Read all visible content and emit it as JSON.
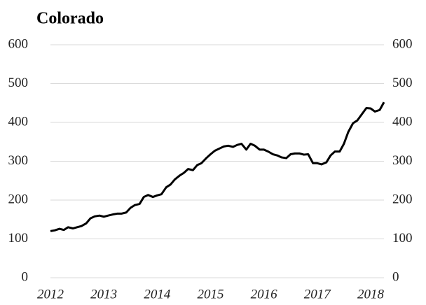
{
  "chart_data": {
    "type": "line",
    "title": "Colorado",
    "x": [
      2012.0,
      2012.08,
      2012.17,
      2012.25,
      2012.33,
      2012.42,
      2012.5,
      2012.58,
      2012.67,
      2012.75,
      2012.83,
      2012.92,
      2013.0,
      2013.08,
      2013.17,
      2013.25,
      2013.33,
      2013.42,
      2013.5,
      2013.58,
      2013.67,
      2013.75,
      2013.83,
      2013.92,
      2014.0,
      2014.08,
      2014.17,
      2014.25,
      2014.33,
      2014.42,
      2014.5,
      2014.58,
      2014.67,
      2014.75,
      2014.83,
      2014.92,
      2015.0,
      2015.08,
      2015.17,
      2015.25,
      2015.33,
      2015.42,
      2015.5,
      2015.58,
      2015.67,
      2015.75,
      2015.83,
      2015.92,
      2016.0,
      2016.08,
      2016.17,
      2016.25,
      2016.33,
      2016.42,
      2016.5,
      2016.58,
      2016.67,
      2016.75,
      2016.83,
      2016.92,
      2017.0,
      2017.08,
      2017.17,
      2017.25,
      2017.33,
      2017.42,
      2017.5,
      2017.58,
      2017.67,
      2017.75,
      2017.83,
      2017.92,
      2018.0,
      2018.08,
      2018.17,
      2018.25
    ],
    "series": [
      {
        "color": "#000000",
        "values": [
          120,
          122,
          126,
          123,
          130,
          127,
          130,
          133,
          140,
          153,
          158,
          160,
          157,
          160,
          163,
          165,
          165,
          168,
          180,
          187,
          190,
          208,
          213,
          208,
          212,
          215,
          233,
          240,
          253,
          263,
          270,
          280,
          277,
          290,
          295,
          308,
          318,
          327,
          333,
          338,
          340,
          337,
          342,
          345,
          330,
          345,
          340,
          330,
          330,
          325,
          318,
          315,
          310,
          308,
          318,
          320,
          320,
          317,
          318,
          295,
          295,
          292,
          297,
          315,
          325,
          325,
          345,
          375,
          398,
          405,
          420,
          437,
          436,
          428,
          432,
          452
        ]
      }
    ],
    "xlim": [
      2012,
      2018.25
    ],
    "xticks": [
      2012,
      2013,
      2014,
      2015,
      2016,
      2017,
      2018
    ],
    "ylim": [
      0,
      600
    ],
    "yticks": [
      0,
      100,
      200,
      300,
      400,
      500,
      600
    ],
    "y2lim": [
      0,
      600
    ],
    "y2ticks": [
      0,
      100,
      200,
      300,
      400,
      500,
      600
    ],
    "grid": true
  }
}
